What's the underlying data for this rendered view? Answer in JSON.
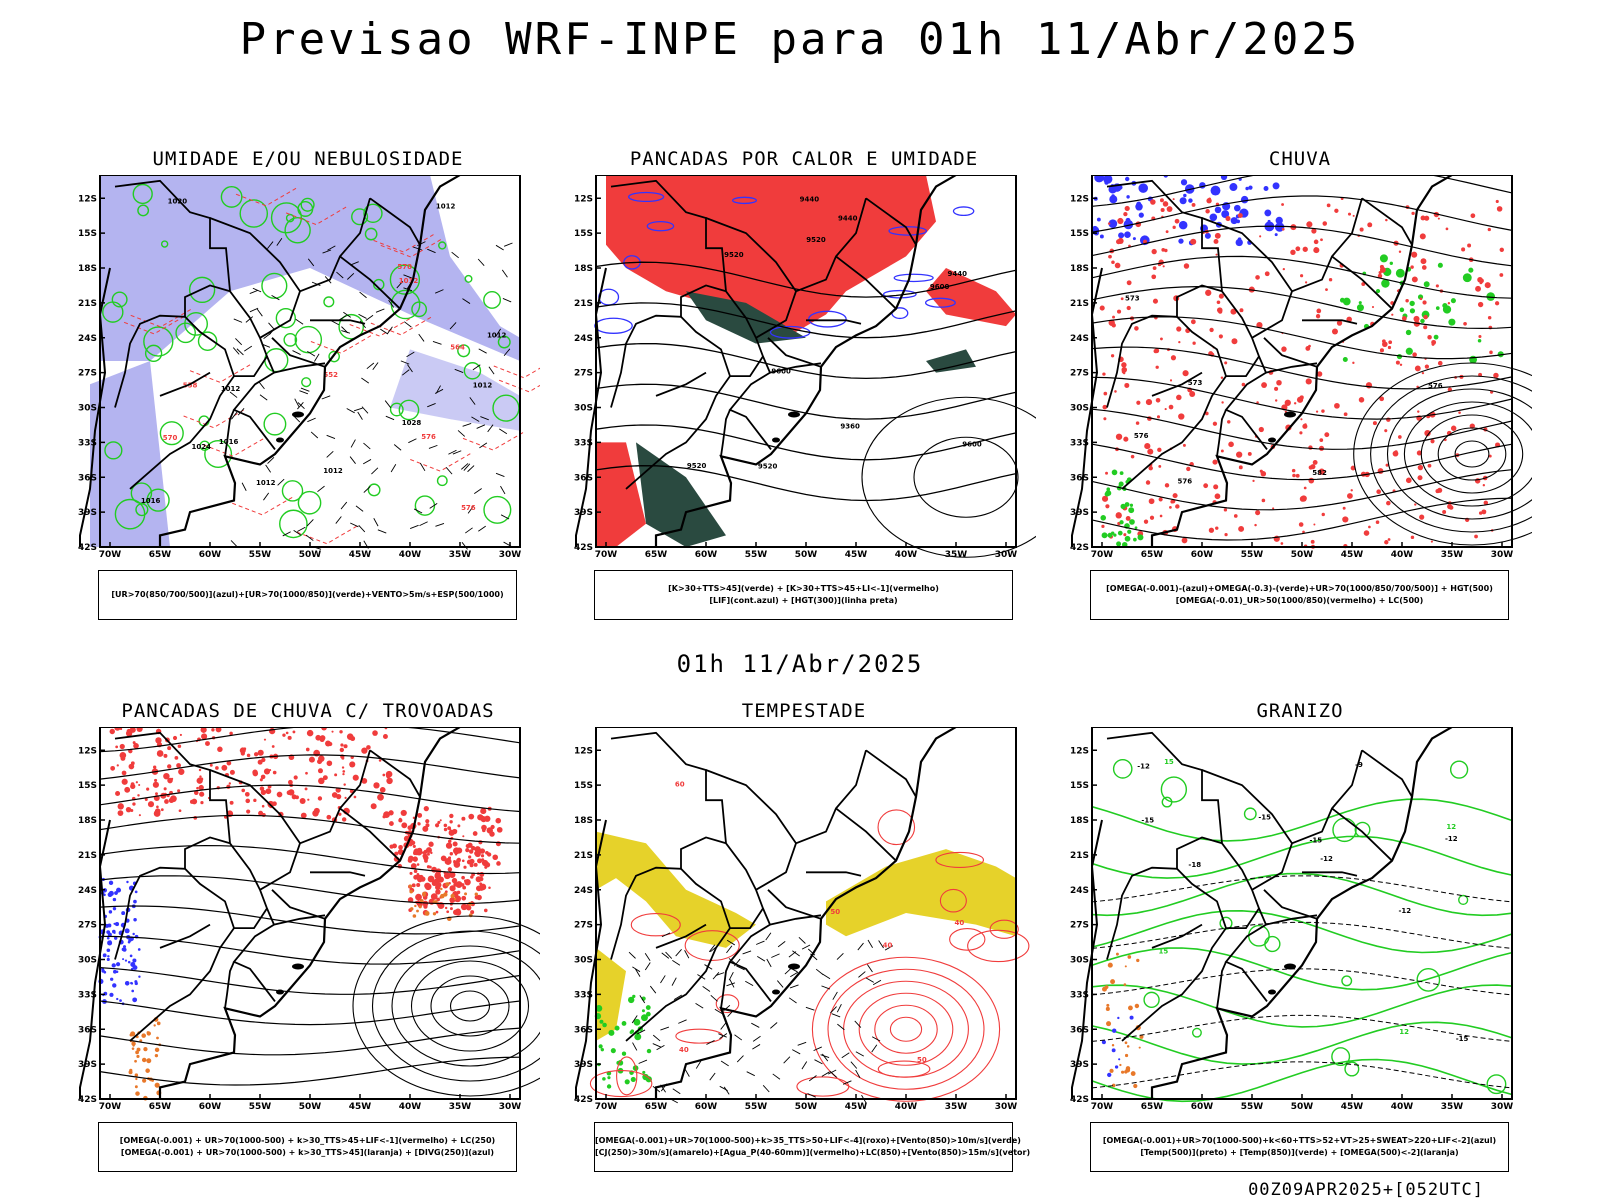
{
  "title": "Previsao WRF-INPE  para 01h 11/Abr/2025",
  "mid_title": "01h 11/Abr/2025",
  "footer": "00Z09APR2025+[052UTC]",
  "lat_labels": [
    "12S",
    "15S",
    "18S",
    "21S",
    "24S",
    "27S",
    "30S",
    "33S",
    "36S",
    "39S",
    "42S"
  ],
  "lon_labels": [
    "70W",
    "65W",
    "60W",
    "55W",
    "50W",
    "45W",
    "40W",
    "35W",
    "30W"
  ],
  "colors": {
    "blue": "#3333ff",
    "lavender": "#b4b4f0",
    "green": "#22cc22",
    "red": "#f03c3c",
    "orange": "#e8782a",
    "yellow": "#e6d22a",
    "dark_teal": "#2a4a40"
  },
  "panels": [
    {
      "id": "umidade",
      "title": "UMIDADE E/OU NEBULOSIDADE",
      "legend": [
        "[UR>70(850/700/500)](azul)+[UR>70(1000/850)](verde)+VENTO>5m/s+ESP(500/1000)"
      ],
      "contour_labels": [
        "1012",
        "1012",
        "1012",
        "1012",
        "1012",
        "1016",
        "1016",
        "1020",
        "1024",
        "1028",
        "1012",
        "1012",
        "576",
        "576",
        "570",
        "570",
        "558",
        "552",
        "564"
      ]
    },
    {
      "id": "pancadas",
      "title": "PANCADAS POR CALOR E UMIDADE",
      "legend": [
        "[K>30+TTS>45](verde)  +  [K>30+TTS>45+LI<-1](vermelho)",
        "[LIF](cont.azul)  +  [HGT(300)](linha preta)"
      ],
      "contour_labels": [
        "9600",
        "9600",
        "9520",
        "9520",
        "9440",
        "9440",
        "9520",
        "9360",
        "9440",
        "9520",
        "9600"
      ]
    },
    {
      "id": "chuva",
      "title": "CHUVA",
      "legend": [
        "[OMEGA(-0.001)-(azul)+OMEGA(-0.3)-(verde)+UR>70(1000/850/700/500)] + HGT(500)",
        "[OMEGA(-0.01)_UR>50(1000/850)(vermelho) + LC(500)"
      ],
      "contour_labels": [
        "576",
        "573",
        "576",
        "582",
        "573",
        "576"
      ]
    },
    {
      "id": "trovoadas",
      "title": "PANCADAS DE CHUVA C/ TROVOADAS",
      "legend": [
        "[OMEGA(-0.001) + UR>70(1000-500) + k>30_TTS>45+LIF<-1](vermelho) + LC(250)",
        "[OMEGA(-0.001) + UR>70(1000-500) + k>30_TTS>45](laranja) + [DIVG(250)](azul)"
      ],
      "contour_labels": []
    },
    {
      "id": "tempestade",
      "title": "TEMPESTADE",
      "legend": [
        "[OMEGA(-0.001)+UR>70(1000-500)+k>35_TTS>50+LIF<-4](roxo)+[Vento(850)>10m/s](verde)",
        "[CJ(250)>30m/s](amarelo)+[Agua_P(40-60mm)](vermelho)+LC(850)+[Vento(850)>15m/s](vetor)"
      ],
      "contour_labels": [
        "50",
        "40",
        "40",
        "50",
        "60",
        "40"
      ]
    },
    {
      "id": "granizo",
      "title": "GRANIZO",
      "legend": [
        "[OMEGA(-0.001)+UR>70(1000-500)+k<60+TTS>52+VT>25+SWEAT>220+LIF<-2](azul)",
        "[Temp(500)](preto) + [Temp(850)](verde) + [OMEGA(500)<-2](laranja)"
      ],
      "contour_labels": [
        "-12",
        "-12",
        "-15",
        "-15",
        "-15",
        "-12",
        "-18",
        "-12",
        "-15",
        "-9",
        "15",
        "12",
        "15",
        "12"
      ]
    }
  ]
}
